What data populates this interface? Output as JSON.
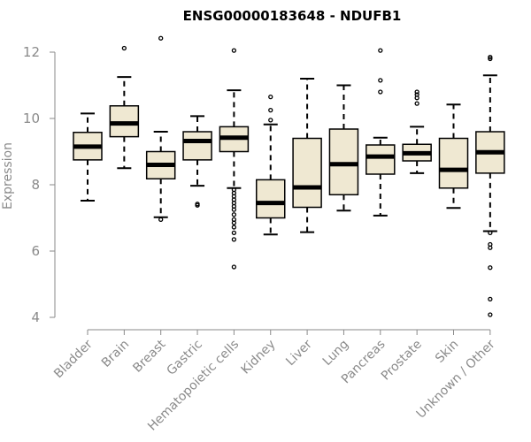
{
  "chart_data": {
    "type": "boxplot",
    "title": "ENSG00000183648 - NDUFB1",
    "xlabel": "",
    "ylabel": "Expression",
    "ylim": [
      4,
      12
    ],
    "yticks": [
      4,
      6,
      8,
      10,
      12
    ],
    "box_color": "#efe8d2",
    "categories": [
      "Bladder",
      "Brain",
      "Breast",
      "Gastric",
      "Hematopoietic cells",
      "Kidney",
      "Liver",
      "Lung",
      "Pancreas",
      "Prostate",
      "Skin",
      "Unknown / Other"
    ],
    "boxes": [
      {
        "label": "Bladder",
        "min": 7.52,
        "q1": 8.75,
        "median": 9.15,
        "q3": 9.58,
        "max": 10.15,
        "outliers": []
      },
      {
        "label": "Brain",
        "min": 8.5,
        "q1": 9.45,
        "median": 9.85,
        "q3": 10.38,
        "max": 11.25,
        "outliers": [
          12.12
        ]
      },
      {
        "label": "Breast",
        "min": 7.02,
        "q1": 8.18,
        "median": 8.6,
        "q3": 9.0,
        "max": 9.6,
        "outliers": [
          12.42,
          6.95
        ]
      },
      {
        "label": "Gastric",
        "min": 7.97,
        "q1": 8.75,
        "median": 9.32,
        "q3": 9.6,
        "max": 10.07,
        "outliers": [
          7.42,
          7.38
        ]
      },
      {
        "label": "Hematopoietic cells",
        "min": 7.9,
        "q1": 9.0,
        "median": 9.42,
        "q3": 9.75,
        "max": 10.85,
        "outliers": [
          12.05,
          7.85,
          7.75,
          7.65,
          7.55,
          7.45,
          7.35,
          7.25,
          7.1,
          6.95,
          6.85,
          6.72,
          6.55,
          6.35,
          5.52
        ]
      },
      {
        "label": "Kidney",
        "min": 6.5,
        "q1": 7.0,
        "median": 7.45,
        "q3": 8.15,
        "max": 9.82,
        "outliers": [
          10.65,
          10.25,
          9.95
        ]
      },
      {
        "label": "Liver",
        "min": 6.57,
        "q1": 7.32,
        "median": 7.92,
        "q3": 9.4,
        "max": 11.2,
        "outliers": []
      },
      {
        "label": "Lung",
        "min": 7.22,
        "q1": 7.7,
        "median": 8.62,
        "q3": 9.68,
        "max": 11.0,
        "outliers": []
      },
      {
        "label": "Pancreas",
        "min": 7.07,
        "q1": 8.32,
        "median": 8.85,
        "q3": 9.2,
        "max": 9.42,
        "outliers": [
          12.05,
          11.15,
          10.8
        ]
      },
      {
        "label": "Prostate",
        "min": 8.35,
        "q1": 8.72,
        "median": 8.95,
        "q3": 9.22,
        "max": 9.75,
        "outliers": [
          10.8,
          10.72,
          10.62,
          10.45
        ]
      },
      {
        "label": "Skin",
        "min": 7.3,
        "q1": 7.9,
        "median": 8.45,
        "q3": 9.4,
        "max": 10.42,
        "outliers": []
      },
      {
        "label": "Unknown / Other",
        "min": 6.6,
        "q1": 8.35,
        "median": 8.98,
        "q3": 9.6,
        "max": 11.3,
        "outliers": [
          11.85,
          11.8,
          6.55,
          6.2,
          6.1,
          5.5,
          4.55,
          4.08
        ]
      }
    ]
  }
}
